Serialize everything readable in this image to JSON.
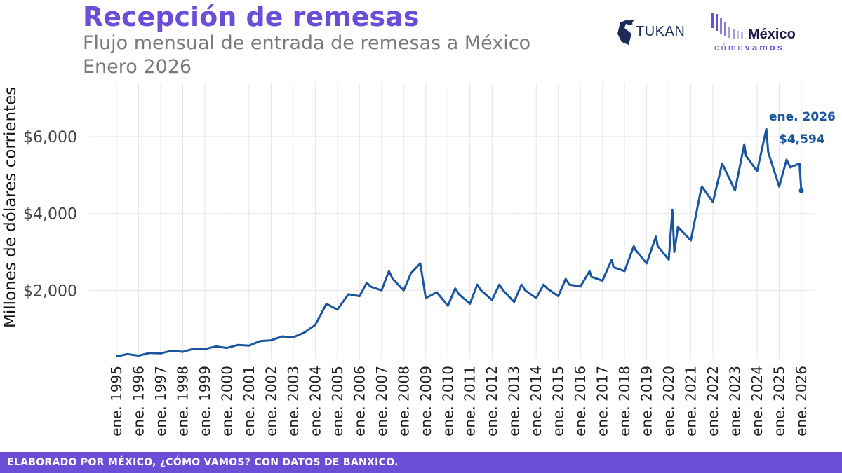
{
  "header": {
    "title": "Recepción de remesas",
    "subtitle": "Flujo mensual de entrada de remesas a México",
    "period": "Enero 2026"
  },
  "logos": {
    "tukan": "TUKAN",
    "mcv_top": "México",
    "mcv_bottom_a": "cómo",
    "mcv_bottom_b": "vamos"
  },
  "footer": {
    "text": "ELABORADO POR MÉXICO, ¿CÓMO VAMOS? CON DATOS DE BANXICO."
  },
  "colors": {
    "brand": "#6a4fd6",
    "line": "#1a56a0",
    "grid": "#e6e6e6"
  },
  "chart_data": {
    "type": "line",
    "title": "Recepción de remesas",
    "ylabel": "Millones de dólares corrientes",
    "xlabel": "",
    "ylim": [
      0,
      7000
    ],
    "xlim": [
      "1995-01",
      "2026-01"
    ],
    "grid": true,
    "legend": "none",
    "y_ticks": [
      2000,
      4000,
      6000
    ],
    "y_tick_labels": [
      "$2,000",
      "$4,000",
      "$6,000"
    ],
    "x_tick_labels": [
      "ene. 1995",
      "ene. 1996",
      "ene. 1997",
      "ene. 1998",
      "ene. 1999",
      "ene. 2000",
      "ene. 2001",
      "ene. 2002",
      "ene. 2003",
      "ene. 2004",
      "ene. 2005",
      "ene. 2006",
      "ene. 2007",
      "ene. 2008",
      "ene. 2009",
      "ene. 2010",
      "ene. 2011",
      "ene. 2012",
      "ene. 2013",
      "ene. 2014",
      "ene. 2015",
      "ene. 2016",
      "ene. 2017",
      "ene. 2018",
      "ene. 2019",
      "ene. 2020",
      "ene. 2021",
      "ene. 2022",
      "ene. 2023",
      "ene. 2024",
      "ene. 2025",
      "ene. 2026"
    ],
    "annotation": {
      "date": "2026-01",
      "label": "ene. 2026",
      "value_label": "$4,594",
      "value": 4594
    },
    "series": [
      {
        "x": [
          "1995-01",
          "1995-07",
          "1996-01",
          "1996-07",
          "1997-01",
          "1997-07",
          "1998-01",
          "1998-07",
          "1999-01",
          "1999-07",
          "2000-01",
          "2000-07",
          "2001-01",
          "2001-07",
          "2002-01",
          "2002-07",
          "2003-01",
          "2003-07",
          "2004-01",
          "2004-07",
          "2005-01",
          "2005-07",
          "2006-01",
          "2006-05",
          "2006-07",
          "2007-01",
          "2007-05",
          "2007-07",
          "2008-01",
          "2008-05",
          "2008-10",
          "2009-01",
          "2009-07",
          "2010-01",
          "2010-05",
          "2010-07",
          "2011-01",
          "2011-05",
          "2011-07",
          "2012-01",
          "2012-05",
          "2012-07",
          "2013-01",
          "2013-05",
          "2013-07",
          "2014-01",
          "2014-05",
          "2014-07",
          "2015-01",
          "2015-05",
          "2015-07",
          "2016-01",
          "2016-06",
          "2016-07",
          "2017-01",
          "2017-06",
          "2017-07",
          "2018-01",
          "2018-06",
          "2018-07",
          "2019-01",
          "2019-06",
          "2019-07",
          "2020-01",
          "2020-03",
          "2020-04",
          "2020-06",
          "2021-01",
          "2021-06",
          "2021-07",
          "2022-01",
          "2022-06",
          "2022-07",
          "2023-01",
          "2023-06",
          "2023-07",
          "2024-01",
          "2024-06",
          "2024-07",
          "2025-01",
          "2025-05",
          "2025-07",
          "2025-12",
          "2026-01"
        ],
        "y": [
          280,
          340,
          300,
          370,
          360,
          430,
          400,
          480,
          470,
          540,
          500,
          580,
          560,
          680,
          700,
          800,
          780,
          900,
          1100,
          1650,
          1500,
          1900,
          1850,
          2200,
          2100,
          2000,
          2500,
          2300,
          2000,
          2450,
          2700,
          1800,
          1950,
          1600,
          2050,
          1900,
          1650,
          2150,
          2000,
          1750,
          2150,
          2000,
          1700,
          2150,
          2000,
          1800,
          2150,
          2050,
          1850,
          2300,
          2150,
          2100,
          2500,
          2350,
          2250,
          2800,
          2600,
          2500,
          3150,
          3050,
          2700,
          3400,
          3150,
          2800,
          4100,
          3000,
          3650,
          3300,
          4500,
          4700,
          4300,
          5300,
          5200,
          4600,
          5800,
          5500,
          5100,
          6200,
          5600,
          4700,
          5400,
          5200,
          5300,
          4594
        ]
      }
    ]
  }
}
